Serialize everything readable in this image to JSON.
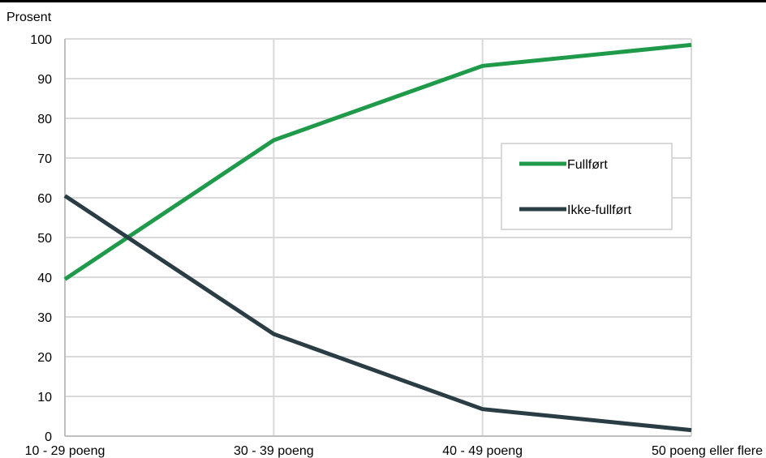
{
  "chart_data": {
    "type": "line",
    "ylabel": "Prosent",
    "xlabel": "",
    "ylim": [
      0,
      100
    ],
    "yticks": [
      "0",
      "10",
      "20",
      "30",
      "40",
      "50",
      "60",
      "70",
      "80",
      "90",
      "100"
    ],
    "categories": [
      "10 - 29 poeng",
      "30 - 39 poeng",
      "40 - 49 poeng",
      "50 poeng eller flere"
    ],
    "grid": true,
    "legend_position": "right",
    "series": [
      {
        "name": "Fullført",
        "color": "#1f9a4a",
        "values": [
          39.5,
          74.5,
          93.2,
          98.5
        ]
      },
      {
        "name": "Ikke-fullført",
        "color": "#2b3d44",
        "values": [
          60.5,
          25.7,
          6.8,
          1.5
        ]
      }
    ]
  }
}
